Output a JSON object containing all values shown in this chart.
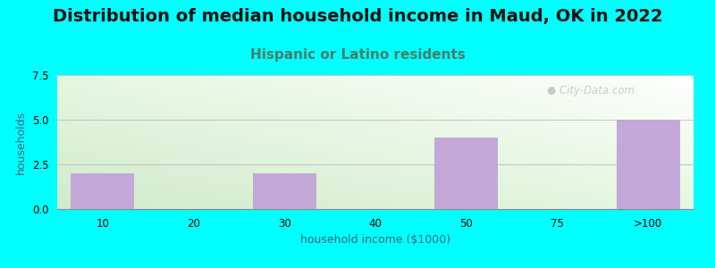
{
  "title": "Distribution of median household income in Maud, OK in 2022",
  "subtitle": "Hispanic or Latino residents",
  "xlabel": "household income ($1000)",
  "ylabel": "households",
  "categories": [
    "10",
    "20",
    "30",
    "40",
    "50",
    "75",
    ">100"
  ],
  "values": [
    2,
    0,
    2,
    0,
    4,
    0,
    5
  ],
  "bar_color": "#C4A8D8",
  "background_color": "#00FFFF",
  "plot_bg_topleft": "#E8F5E0",
  "plot_bg_topright": "#FFFFFF",
  "plot_bg_bottom": "#D8EED0",
  "ylim": [
    0,
    7.5
  ],
  "yticks": [
    0,
    2.5,
    5,
    7.5
  ],
  "grid_color": "#BBBBBB",
  "title_fontsize": 14,
  "subtitle_fontsize": 11,
  "subtitle_color": "#4A7C6A",
  "axis_label_fontsize": 9,
  "tick_fontsize": 8.5,
  "watermark_text": "  City-Data.com",
  "watermark_color": "#BBBBBB",
  "bar_width": 0.7
}
